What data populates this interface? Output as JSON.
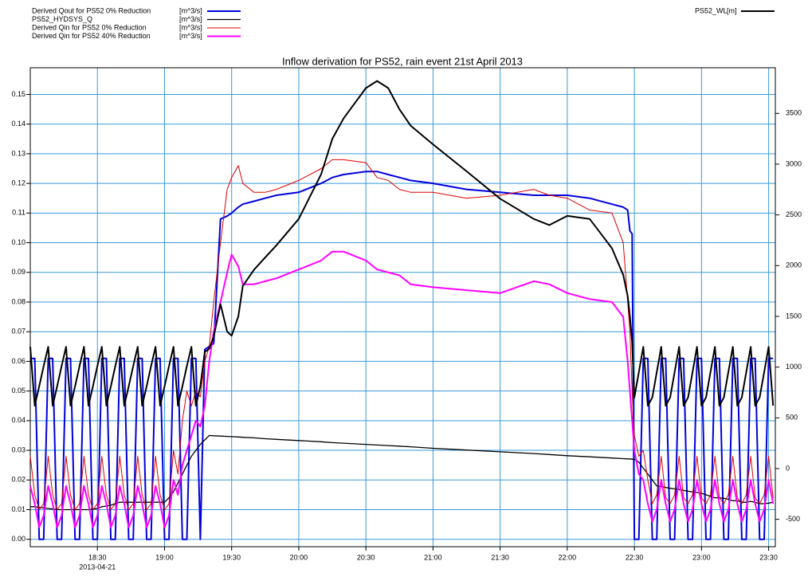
{
  "chart_data": {
    "type": "line",
    "title": "Inflow derivation for PS52, rain event 21st April 2013",
    "x_date_label": "2013-04-21",
    "x": [
      "18:00",
      "18:02",
      "18:04",
      "18:06",
      "18:08",
      "18:10",
      "18:12",
      "18:14",
      "18:16",
      "18:18",
      "18:20",
      "18:22",
      "18:24",
      "18:26",
      "18:28",
      "18:30",
      "18:32",
      "18:34",
      "18:36",
      "18:38",
      "18:40",
      "18:42",
      "18:44",
      "18:46",
      "18:48",
      "18:50",
      "18:52",
      "18:54",
      "18:56",
      "18:58",
      "19:00",
      "19:02",
      "19:04",
      "19:06",
      "19:08",
      "19:10",
      "19:12",
      "19:14",
      "19:16",
      "19:18",
      "19:20",
      "19:22",
      "19:25",
      "19:28",
      "19:30",
      "19:33",
      "19:35",
      "19:40",
      "19:45",
      "19:50",
      "20:00",
      "20:10",
      "20:15",
      "20:20",
      "20:30",
      "20:35",
      "20:40",
      "20:45",
      "20:50",
      "21:00",
      "21:15",
      "21:30",
      "21:45",
      "21:52",
      "22:00",
      "22:10",
      "22:20",
      "22:25",
      "22:27",
      "22:28",
      "22:29",
      "22:30",
      "22:32",
      "22:34",
      "22:36",
      "22:38",
      "22:40",
      "22:42",
      "22:44",
      "22:46",
      "22:48",
      "22:50",
      "22:52",
      "22:54",
      "22:56",
      "22:58",
      "23:00",
      "23:02",
      "23:04",
      "23:06",
      "23:08",
      "23:10",
      "23:12",
      "23:14",
      "23:16",
      "23:18",
      "23:20",
      "23:22",
      "23:24",
      "23:26",
      "23:28",
      "23:30",
      "23:32"
    ],
    "xlim": [
      "18:00",
      "23:33"
    ],
    "xticks": [
      "18:30",
      "19:00",
      "19:30",
      "20:00",
      "20:30",
      "21:00",
      "21:30",
      "22:00",
      "22:30",
      "23:00",
      "23:30"
    ],
    "ylim": [
      -0.0025,
      0.159
    ],
    "yticks": [
      {
        "value": 0,
        "label": "0.00"
      },
      0.01,
      0.02,
      0.03,
      0.04,
      0.05,
      0.06,
      0.07,
      0.08,
      0.09,
      {
        "value": 0.1,
        "label": "0.10"
      },
      0.11,
      0.12,
      0.13,
      0.14,
      0.15
    ],
    "y2lim": [
      -770,
      3950
    ],
    "y2ticks": [
      -500,
      0,
      500,
      1000,
      1500,
      2000,
      2500,
      3000,
      3500
    ],
    "grid": true,
    "series": [
      {
        "name": "Derived Qout for PS52 0% Reduction",
        "unit": "[m^3/s]",
        "color": "#0000dd",
        "width": 2,
        "values": [
          0.061,
          0.061,
          0,
          0,
          0.061,
          0.061,
          0,
          0,
          0.061,
          0.061,
          0,
          0,
          0.061,
          0.061,
          0,
          0,
          0.061,
          0.061,
          0,
          0,
          0.061,
          0.061,
          0,
          0,
          0.061,
          0.061,
          0,
          0,
          0.061,
          0.061,
          0,
          0,
          0.061,
          0.061,
          0,
          0,
          0.061,
          0.061,
          0,
          0.064,
          0.065,
          0.066,
          0.108,
          0.109,
          0.11,
          0.112,
          0.113,
          0.114,
          0.115,
          0.116,
          0.117,
          0.12,
          0.122,
          0.123,
          0.124,
          0.124,
          0.123,
          0.122,
          0.121,
          0.12,
          0.118,
          0.117,
          0.116,
          0.116,
          0.116,
          0.115,
          0.113,
          0.112,
          0.111,
          0.104,
          0.103,
          0,
          0,
          0.061,
          0.061,
          0,
          0,
          0.061,
          0.061,
          0,
          0,
          0.061,
          0.061,
          0,
          0,
          0.061,
          0.061,
          0,
          0,
          0.061,
          0.061,
          0,
          0,
          0.061,
          0.061,
          0,
          0,
          0.061,
          0.061,
          0,
          0,
          0.061,
          0.061
        ]
      },
      {
        "name": "PS52_HYDSYS_Q",
        "unit": "[m^3/s]",
        "color": "#000000",
        "width": 1.3,
        "values": [
          0.011,
          0.011,
          0.0108,
          0.0106,
          0.0104,
          0.0102,
          0.01,
          0.01,
          0.01,
          0.01,
          0.01,
          0.01,
          0.01,
          0.01,
          0.0102,
          0.0104,
          0.011,
          0.0112,
          0.0115,
          0.012,
          0.0125,
          0.0125,
          0.0125,
          0.0125,
          0.0125,
          0.0125,
          0.0125,
          0.0125,
          0.0125,
          0.0125,
          0.0125,
          0.014,
          0.016,
          0.019,
          0.022,
          0.025,
          0.028,
          0.03,
          0.032,
          0.0335,
          0.035,
          0.0349,
          0.0348,
          0.0347,
          0.0346,
          0.0345,
          0.0344,
          0.0342,
          0.0339,
          0.0337,
          0.0333,
          0.0329,
          0.0326,
          0.0324,
          0.032,
          0.0318,
          0.0316,
          0.0314,
          0.0312,
          0.0307,
          0.0301,
          0.0295,
          0.0289,
          0.0286,
          0.0282,
          0.0278,
          0.0274,
          0.0272,
          0.0271,
          0.0271,
          0.027,
          0.027,
          0.026,
          0.024,
          0.022,
          0.02,
          0.018,
          0.0178,
          0.0175,
          0.0172,
          0.017,
          0.0168,
          0.0165,
          0.0162,
          0.016,
          0.0158,
          0.0155,
          0.015,
          0.0145,
          0.014,
          0.014,
          0.0138,
          0.0135,
          0.013,
          0.013,
          0.0125,
          0.0125,
          0.0128,
          0.0125,
          0.012,
          0.012,
          0.0122,
          0.0125
        ]
      },
      {
        "name": "Derived Qin for PS52 0% Reduction",
        "unit": "[m^3/s]",
        "color": "#dd0000",
        "width": 1,
        "values": [
          0.028,
          0.015,
          0.01,
          0.012,
          0.028,
          0.015,
          0.01,
          0.012,
          0.028,
          0.015,
          0.01,
          0.012,
          0.028,
          0.015,
          0.01,
          0.012,
          0.028,
          0.015,
          0.01,
          0.012,
          0.028,
          0.015,
          0.01,
          0.012,
          0.028,
          0.015,
          0.01,
          0.012,
          0.028,
          0.015,
          0.01,
          0.012,
          0.03,
          0.022,
          0.04,
          0.05,
          0.045,
          0.05,
          0.048,
          0.06,
          0.065,
          0.08,
          0.1,
          0.118,
          0.122,
          0.126,
          0.12,
          0.117,
          0.117,
          0.118,
          0.121,
          0.125,
          0.128,
          0.128,
          0.127,
          0.122,
          0.121,
          0.118,
          0.117,
          0.117,
          0.115,
          0.116,
          0.118,
          0.116,
          0.115,
          0.111,
          0.11,
          0.1,
          0.08,
          0.07,
          0.05,
          0.035,
          0.028,
          0.03,
          0.02,
          0.012,
          0.015,
          0.028,
          0.014,
          0.012,
          0.015,
          0.028,
          0.014,
          0.012,
          0.015,
          0.028,
          0.014,
          0.012,
          0.015,
          0.028,
          0.014,
          0.012,
          0.015,
          0.028,
          0.014,
          0.012,
          0.015,
          0.028,
          0.014,
          0.012,
          0.015,
          0.028,
          0.014
        ]
      },
      {
        "name": "Derived Qin for PS52 40% Reduction",
        "unit": "[m^3/s]",
        "color": "#ff00ff",
        "width": 2,
        "values": [
          0.018,
          0.012,
          0.004,
          0.008,
          0.018,
          0.012,
          0.004,
          0.008,
          0.018,
          0.012,
          0.004,
          0.008,
          0.018,
          0.012,
          0.004,
          0.008,
          0.018,
          0.012,
          0.004,
          0.008,
          0.018,
          0.012,
          0.004,
          0.008,
          0.018,
          0.012,
          0.004,
          0.008,
          0.018,
          0.012,
          0.004,
          0.008,
          0.02,
          0.015,
          0.025,
          0.03,
          0.035,
          0.04,
          0.038,
          0.045,
          0.06,
          0.07,
          0.08,
          0.09,
          0.096,
          0.092,
          0.086,
          0.086,
          0.087,
          0.088,
          0.091,
          0.094,
          0.097,
          0.097,
          0.094,
          0.091,
          0.09,
          0.089,
          0.086,
          0.085,
          0.084,
          0.083,
          0.087,
          0.086,
          0.083,
          0.081,
          0.08,
          0.075,
          0.06,
          0.05,
          0.04,
          0.03,
          0.022,
          0.02,
          0.012,
          0.006,
          0.01,
          0.02,
          0.012,
          0.006,
          0.01,
          0.02,
          0.012,
          0.006,
          0.01,
          0.02,
          0.012,
          0.006,
          0.01,
          0.02,
          0.012,
          0.006,
          0.01,
          0.02,
          0.012,
          0.006,
          0.01,
          0.02,
          0.012,
          0.006,
          0.01,
          0.02,
          0.012
        ]
      },
      {
        "name": "PS52_WL",
        "unit": "[m]",
        "color": "#000000",
        "width": 2,
        "axis": "y2",
        "values": [
          1200,
          620,
          810,
          1010,
          1200,
          620,
          810,
          1010,
          1200,
          620,
          810,
          1010,
          1200,
          620,
          810,
          1010,
          1200,
          620,
          810,
          1010,
          1200,
          620,
          810,
          1010,
          1200,
          620,
          810,
          1010,
          1200,
          620,
          810,
          1010,
          1200,
          620,
          810,
          1010,
          1200,
          620,
          810,
          1150,
          1180,
          1300,
          1620,
          1350,
          1310,
          1500,
          1800,
          1960,
          2080,
          2200,
          2460,
          2900,
          3250,
          3450,
          3750,
          3820,
          3750,
          3540,
          3380,
          3195,
          2930,
          2660,
          2460,
          2400,
          2490,
          2460,
          2170,
          1910,
          1700,
          1500,
          1250,
          700,
          950,
          1200,
          620,
          700,
          950,
          1200,
          620,
          700,
          950,
          1200,
          620,
          700,
          950,
          1200,
          620,
          700,
          950,
          1200,
          620,
          700,
          950,
          1200,
          620,
          700,
          950,
          1200,
          620,
          700,
          950,
          1200,
          620
        ]
      }
    ]
  }
}
